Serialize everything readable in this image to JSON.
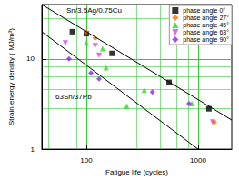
{
  "chart_data": {
    "type": "scatter",
    "x_label": "Fatigue life (cycles)",
    "y_label": "Strain energy density ( MJ/m³)",
    "log": true,
    "grid": true,
    "legend": "upper right",
    "xlim": [
      40,
      2000
    ],
    "ylim": [
      1,
      40
    ],
    "xticks": [
      100,
      1000
    ],
    "yticks": [
      1,
      10
    ],
    "series": [
      {
        "name": "Sn/3.5Ag/0.75Cu",
        "type": "line",
        "color": "#000000",
        "line_style": "solid",
        "x": [
          40,
          2000
        ],
        "values": [
          40,
          2.1
        ]
      },
      {
        "name": "63Sn/37Pb",
        "type": "line",
        "color": "#000000",
        "line_style": "solid",
        "x": [
          40,
          1000
        ],
        "values": [
          20,
          1
        ]
      },
      {
        "name": "phase angle 0°",
        "type": "scatter",
        "color": "#000000",
        "marker": "square",
        "x": [
          75,
          100,
          170,
          550,
          1250
        ],
        "values": [
          20,
          19,
          11.5,
          5.5,
          2.8
        ]
      },
      {
        "name": "phase angle 27°",
        "type": "scatter",
        "color": "#ff6a00",
        "marker": "diamond",
        "x": [
          100,
          120,
          1400
        ],
        "values": [
          20,
          17,
          2.0
        ]
      },
      {
        "name": "phase angle 45°",
        "type": "scatter",
        "color": "#22dd22",
        "marker": "triangle",
        "x": [
          100,
          140,
          150,
          230,
          330,
          880
        ],
        "values": [
          15,
          13,
          8,
          3,
          4.5,
          3.2
        ]
      },
      {
        "name": "phase angle 63°",
        "type": "scatter",
        "color": "#e040e0",
        "marker": "triangle_down",
        "x": [
          65,
          120,
          130,
          1350
        ],
        "values": [
          15,
          14,
          11,
          2
        ]
      },
      {
        "name": "phase angle 90°",
        "type": "scatter",
        "color": "#8a2be2",
        "marker": "diamond",
        "x": [
          70,
          110,
          130,
          390,
          830
        ],
        "values": [
          10,
          7,
          6,
          4.3,
          3.2
        ]
      }
    ]
  }
}
